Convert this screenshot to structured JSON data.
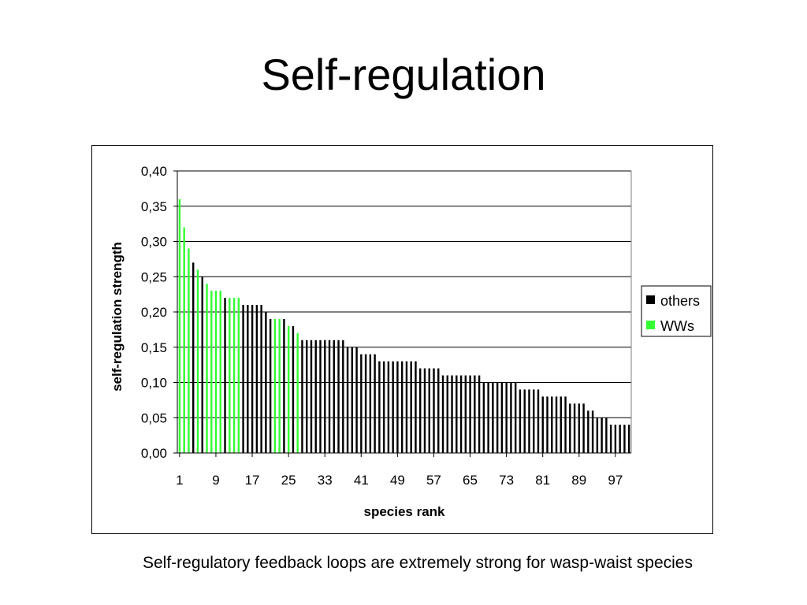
{
  "slide": {
    "title": "Self-regulation",
    "caption": "Self-regulatory feedback loops are extremely strong for wasp-waist species"
  },
  "colors": {
    "others": "#000000",
    "wws": "#33ff33"
  },
  "chart_data": {
    "type": "bar",
    "xlabel": "species rank",
    "ylabel": "self-regulation strength",
    "ylim": [
      0,
      0.4
    ],
    "yticks": [
      "0,00",
      "0,05",
      "0,10",
      "0,15",
      "0,20",
      "0,25",
      "0,30",
      "0,35",
      "0,40"
    ],
    "xticks": [
      "1",
      "9",
      "17",
      "25",
      "33",
      "41",
      "49",
      "57",
      "65",
      "73",
      "81",
      "89",
      "97"
    ],
    "grid": true,
    "legend_position": "right",
    "legend": [
      {
        "name": "others",
        "color": "#000000"
      },
      {
        "name": "WWs",
        "color": "#33ff33"
      }
    ],
    "ranks": [
      1,
      2,
      3,
      4,
      5,
      6,
      7,
      8,
      9,
      10,
      11,
      12,
      13,
      14,
      15,
      16,
      17,
      18,
      19,
      20,
      21,
      22,
      23,
      24,
      25,
      26,
      27,
      28,
      29,
      30,
      31,
      32,
      33,
      34,
      35,
      36,
      37,
      38,
      39,
      40,
      41,
      42,
      43,
      44,
      45,
      46,
      47,
      48,
      49,
      50,
      51,
      52,
      53,
      54,
      55,
      56,
      57,
      58,
      59,
      60,
      61,
      62,
      63,
      64,
      65,
      66,
      67,
      68,
      69,
      70,
      71,
      72,
      73,
      74,
      75,
      76,
      77,
      78,
      79,
      80,
      81,
      82,
      83,
      84,
      85,
      86,
      87,
      88,
      89,
      90,
      91,
      92,
      93,
      94,
      95,
      96,
      97,
      98,
      99,
      100
    ],
    "values": [
      0.36,
      0.32,
      0.29,
      0.27,
      0.26,
      0.25,
      0.24,
      0.23,
      0.23,
      0.23,
      0.22,
      0.22,
      0.22,
      0.22,
      0.21,
      0.21,
      0.21,
      0.21,
      0.21,
      0.2,
      0.19,
      0.19,
      0.19,
      0.19,
      0.18,
      0.18,
      0.17,
      0.16,
      0.16,
      0.16,
      0.16,
      0.16,
      0.16,
      0.16,
      0.16,
      0.16,
      0.16,
      0.15,
      0.15,
      0.15,
      0.14,
      0.14,
      0.14,
      0.14,
      0.13,
      0.13,
      0.13,
      0.13,
      0.13,
      0.13,
      0.13,
      0.13,
      0.13,
      0.12,
      0.12,
      0.12,
      0.12,
      0.12,
      0.11,
      0.11,
      0.11,
      0.11,
      0.11,
      0.11,
      0.11,
      0.11,
      0.11,
      0.1,
      0.1,
      0.1,
      0.1,
      0.1,
      0.1,
      0.1,
      0.1,
      0.09,
      0.09,
      0.09,
      0.09,
      0.09,
      0.08,
      0.08,
      0.08,
      0.08,
      0.08,
      0.08,
      0.07,
      0.07,
      0.07,
      0.07,
      0.06,
      0.06,
      0.05,
      0.05,
      0.05,
      0.04,
      0.04,
      0.04,
      0.04,
      0.04
    ],
    "groups": [
      "WWs",
      "WWs",
      "WWs",
      "others",
      "WWs",
      "others",
      "WWs",
      "WWs",
      "WWs",
      "WWs",
      "others",
      "WWs",
      "WWs",
      "WWs",
      "others",
      "others",
      "others",
      "others",
      "others",
      "others",
      "others",
      "WWs",
      "WWs",
      "others",
      "WWs",
      "others",
      "WWs",
      "others",
      "others",
      "others",
      "others",
      "others",
      "others",
      "others",
      "others",
      "others",
      "others",
      "others",
      "others",
      "others",
      "others",
      "others",
      "others",
      "others",
      "others",
      "others",
      "others",
      "others",
      "others",
      "others",
      "others",
      "others",
      "others",
      "others",
      "others",
      "others",
      "others",
      "others",
      "others",
      "others",
      "others",
      "others",
      "others",
      "others",
      "others",
      "others",
      "others",
      "others",
      "others",
      "others",
      "others",
      "others",
      "others",
      "others",
      "others",
      "others",
      "others",
      "others",
      "others",
      "others",
      "others",
      "others",
      "others",
      "others",
      "others",
      "others",
      "others",
      "others",
      "others",
      "others",
      "others",
      "others",
      "others",
      "others",
      "others",
      "others",
      "others",
      "others",
      "others",
      "others"
    ]
  }
}
